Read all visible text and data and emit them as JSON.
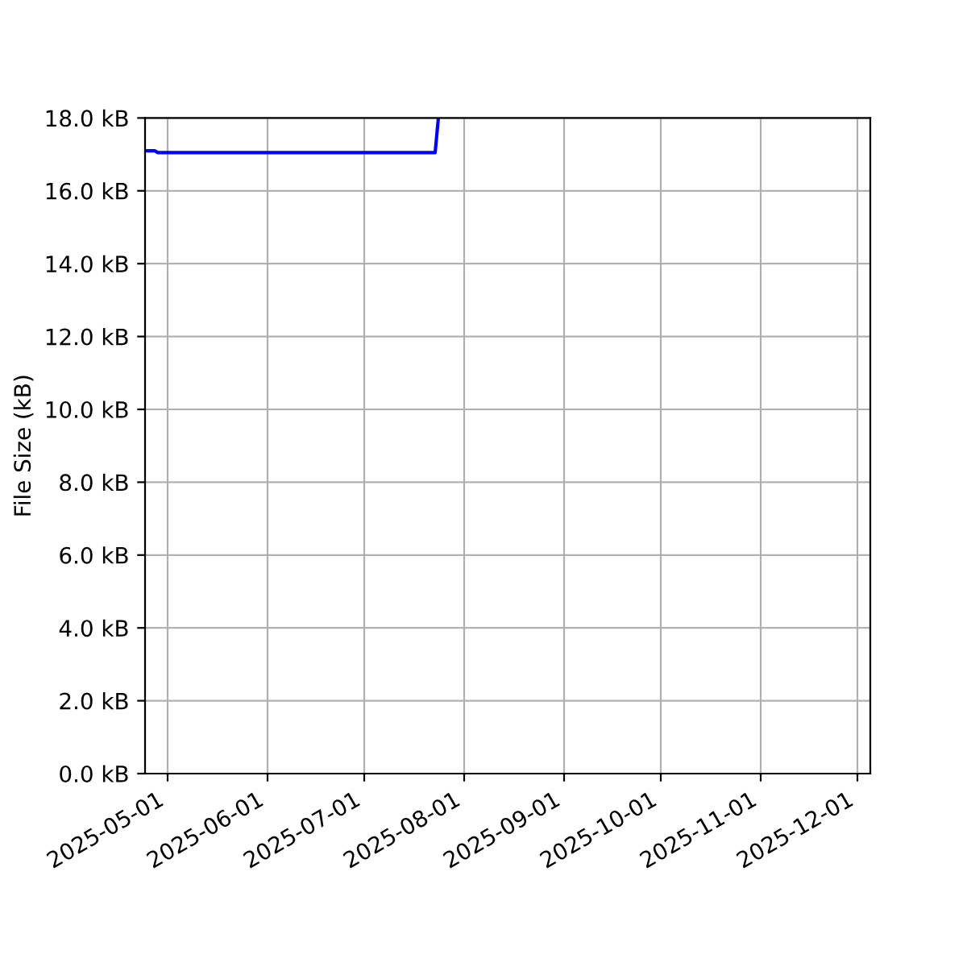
{
  "chart_data": {
    "type": "line",
    "ylabel": "File Size (kB)",
    "series": [
      {
        "color": "#0000ff",
        "x": [
          "2025-04-24",
          "2025-04-27",
          "2025-04-28",
          "2025-07-23",
          "2025-07-24"
        ],
        "values": [
          17.1,
          17.1,
          17.05,
          17.05,
          18.0
        ]
      }
    ],
    "xlim": [
      "2025-04-24",
      "2025-12-05"
    ],
    "xticks": [
      "2025-05-01",
      "2025-06-01",
      "2025-07-01",
      "2025-08-01",
      "2025-09-01",
      "2025-10-01",
      "2025-11-01",
      "2025-12-01"
    ],
    "ylim": [
      0,
      18
    ],
    "yticks": [
      {
        "value": 0,
        "label": "0.0 kB"
      },
      {
        "value": 2,
        "label": "2.0 kB"
      },
      {
        "value": 4,
        "label": "4.0 kB"
      },
      {
        "value": 6,
        "label": "6.0 kB"
      },
      {
        "value": 8,
        "label": "8.0 kB"
      },
      {
        "value": 10,
        "label": "10.0 kB"
      },
      {
        "value": 12,
        "label": "12.0 kB"
      },
      {
        "value": 14,
        "label": "14.0 kB"
      },
      {
        "value": 16,
        "label": "16.0 kB"
      },
      {
        "value": 18,
        "label": "18.0 kB"
      }
    ],
    "grid": true,
    "marker": "none",
    "line_style": "solid"
  }
}
